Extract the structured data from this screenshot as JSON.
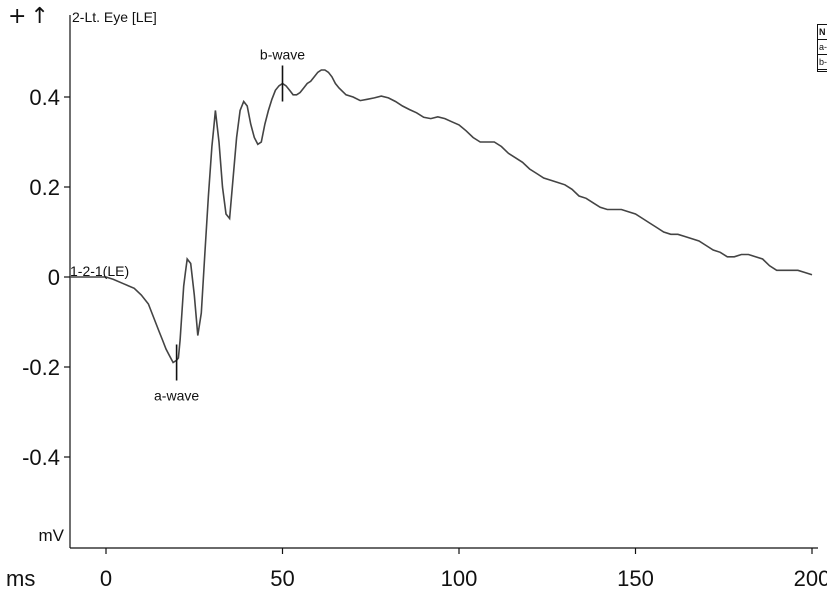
{
  "toolbar": {
    "add_icon": "plus-icon",
    "add_glyph": "+",
    "up_icon": "arrow-up-icon",
    "up_glyph": "↑"
  },
  "legend_table": {
    "header": "N",
    "rows": [
      "a-",
      "b-"
    ]
  },
  "chart_data": {
    "type": "line",
    "title": "2-Lt. Eye [LE]",
    "xlabel": "ms",
    "ylabel": "mV",
    "xlim": [
      -10,
      200
    ],
    "ylim": [
      -0.6,
      0.5
    ],
    "xticks": [
      0,
      50,
      100,
      150,
      200
    ],
    "yticks": [
      -0.4,
      -0.2,
      0,
      0.2,
      0.4
    ],
    "ytick_labels": [
      "-0.4",
      "-0.2",
      "0",
      "0.2",
      "0.4"
    ],
    "grid": false,
    "series": [
      {
        "name": "1-2-1(LE)",
        "color": "#444444",
        "x": [
          -10,
          -6,
          -2,
          0,
          2,
          5,
          8,
          10,
          12,
          13,
          14,
          15,
          16,
          17,
          18,
          19,
          20,
          20.5,
          21,
          21.5,
          22,
          22.5,
          23,
          24,
          25,
          26,
          27,
          28,
          29,
          30,
          30.5,
          31,
          32,
          33,
          34,
          35,
          36,
          37,
          38,
          39,
          40,
          41,
          42,
          43,
          44,
          45,
          46,
          47,
          48,
          49,
          50,
          51,
          52,
          53,
          54,
          55,
          56,
          57,
          58,
          59,
          60,
          61,
          62,
          63,
          64,
          65,
          66,
          68,
          70,
          72,
          74,
          76,
          78,
          80,
          82,
          84,
          86,
          88,
          90,
          92,
          94,
          96,
          98,
          100,
          102,
          104,
          106,
          108,
          110,
          112,
          114,
          116,
          118,
          120,
          122,
          124,
          126,
          128,
          130,
          132,
          134,
          136,
          138,
          140,
          142,
          144,
          146,
          148,
          150,
          152,
          154,
          156,
          158,
          160,
          162,
          164,
          166,
          168,
          170,
          172,
          174,
          176,
          178,
          180,
          182,
          184,
          186,
          188,
          190,
          192,
          194,
          196,
          198,
          200
        ],
        "y": [
          0.0,
          0.0,
          0.0,
          0.0,
          -0.005,
          -0.015,
          -0.025,
          -0.04,
          -0.06,
          -0.08,
          -0.1,
          -0.12,
          -0.14,
          -0.16,
          -0.175,
          -0.19,
          -0.185,
          -0.18,
          -0.14,
          -0.08,
          -0.02,
          0.01,
          0.04,
          0.03,
          -0.04,
          -0.13,
          -0.08,
          0.05,
          0.18,
          0.29,
          0.33,
          0.37,
          0.3,
          0.2,
          0.14,
          0.13,
          0.22,
          0.31,
          0.37,
          0.39,
          0.38,
          0.34,
          0.31,
          0.295,
          0.3,
          0.34,
          0.37,
          0.395,
          0.415,
          0.425,
          0.43,
          0.425,
          0.415,
          0.405,
          0.405,
          0.41,
          0.42,
          0.43,
          0.435,
          0.445,
          0.455,
          0.46,
          0.46,
          0.455,
          0.445,
          0.43,
          0.42,
          0.405,
          0.4,
          0.392,
          0.395,
          0.398,
          0.402,
          0.398,
          0.39,
          0.38,
          0.372,
          0.365,
          0.355,
          0.352,
          0.356,
          0.352,
          0.345,
          0.338,
          0.325,
          0.31,
          0.3,
          0.3,
          0.3,
          0.29,
          0.275,
          0.265,
          0.255,
          0.24,
          0.23,
          0.22,
          0.215,
          0.21,
          0.205,
          0.195,
          0.18,
          0.175,
          0.165,
          0.155,
          0.15,
          0.15,
          0.15,
          0.145,
          0.14,
          0.13,
          0.12,
          0.11,
          0.1,
          0.095,
          0.095,
          0.09,
          0.085,
          0.08,
          0.07,
          0.06,
          0.055,
          0.045,
          0.045,
          0.05,
          0.05,
          0.045,
          0.04,
          0.025,
          0.015,
          0.015,
          0.015,
          0.015,
          0.01,
          0.005
        ]
      }
    ],
    "markers": [
      {
        "label": "a-wave",
        "x": 20,
        "y": -0.19,
        "label_position": "below"
      },
      {
        "label": "b-wave",
        "x": 50,
        "y": 0.43,
        "label_position": "above"
      }
    ]
  }
}
